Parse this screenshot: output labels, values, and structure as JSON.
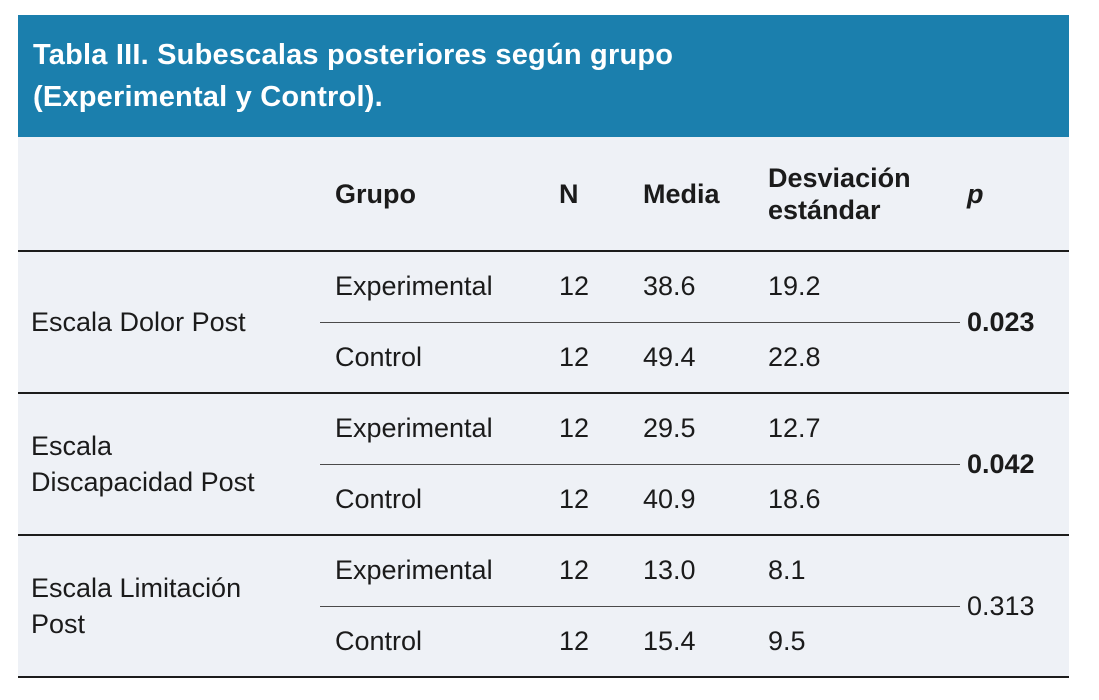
{
  "figure": {
    "title_lines": [
      "Tabla III. Subescalas posteriores según grupo",
      "(Experimental y Control)."
    ],
    "accent_color": "#1b7fad",
    "body_background": "#eef1f6"
  },
  "columns": {
    "grupo": "Grupo",
    "n": "N",
    "media": "Media",
    "desv": "Desviación estándar",
    "p": "p"
  },
  "groups": [
    {
      "label": "Escala Dolor Post",
      "p": "0.023",
      "p_bold": true,
      "rows": [
        {
          "grupo": "Experimental",
          "n": "12",
          "media": "38.6",
          "desv": "19.2"
        },
        {
          "grupo": "Control",
          "n": "12",
          "media": "49.4",
          "desv": "22.8"
        }
      ]
    },
    {
      "label": "Escala Discapacidad Post",
      "p": "0.042",
      "p_bold": true,
      "rows": [
        {
          "grupo": "Experimental",
          "n": "12",
          "media": "29.5",
          "desv": "12.7"
        },
        {
          "grupo": "Control",
          "n": "12",
          "media": "40.9",
          "desv": "18.6"
        }
      ]
    },
    {
      "label": "Escala Limitación Post",
      "p": "0.313",
      "p_bold": false,
      "rows": [
        {
          "grupo": "Experimental",
          "n": "12",
          "media": "13.0",
          "desv": "8.1"
        },
        {
          "grupo": "Control",
          "n": "12",
          "media": "15.4",
          "desv": "9.5"
        }
      ]
    }
  ],
  "chart_data": {
    "type": "table",
    "title": "Tabla III. Subescalas posteriores según grupo (Experimental y Control).",
    "columns": [
      "",
      "Grupo",
      "N",
      "Media",
      "Desviación estándar",
      "p"
    ],
    "rows": [
      [
        "Escala Dolor Post",
        "Experimental",
        12,
        38.6,
        19.2,
        0.023
      ],
      [
        "Escala Dolor Post",
        "Control",
        12,
        49.4,
        22.8,
        0.023
      ],
      [
        "Escala Discapacidad Post",
        "Experimental",
        12,
        29.5,
        12.7,
        0.042
      ],
      [
        "Escala Discapacidad Post",
        "Control",
        12,
        40.9,
        18.6,
        0.042
      ],
      [
        "Escala Limitación Post",
        "Experimental",
        12,
        13.0,
        8.1,
        0.313
      ],
      [
        "Escala Limitación Post",
        "Control",
        12,
        15.4,
        9.5,
        0.313
      ]
    ],
    "notes": "p values 0.023 and 0.042 rendered bold (significant); 0.313 regular weight. Each scale has one shared p value per Experimental/Control pair."
  }
}
